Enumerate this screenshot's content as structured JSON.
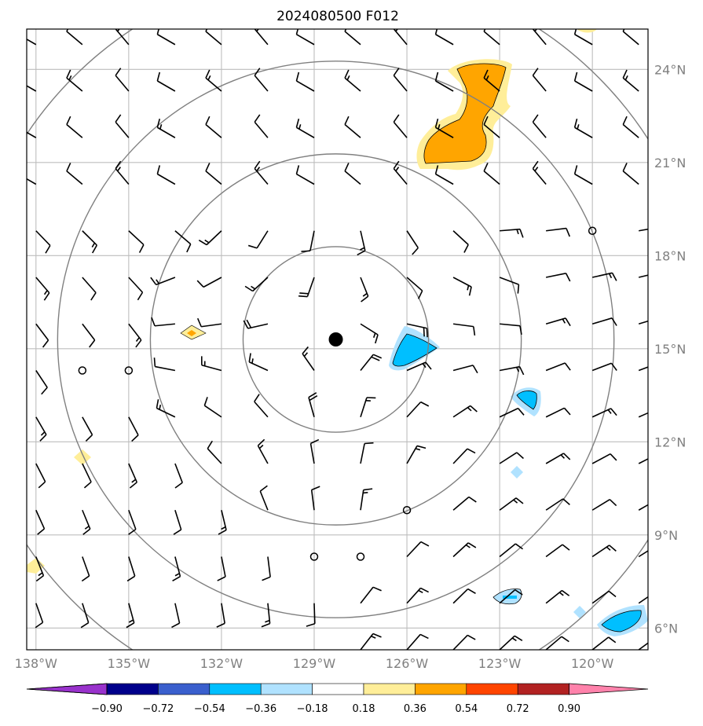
{
  "title": "2024080500 F012",
  "map": {
    "lon_ticks": [
      "138°W",
      "135°W",
      "132°W",
      "129°W",
      "126°W",
      "123°W",
      "120°W"
    ],
    "lat_ticks": [
      "24°N",
      "21°N",
      "18°N",
      "15°N",
      "12°N",
      "9°N",
      "6°N"
    ],
    "lon_range_deg": [
      -138.3,
      -118.2
    ],
    "lat_range_deg": [
      5.3,
      25.3
    ],
    "storm_center": {
      "lon": -128.3,
      "lat": 15.3
    },
    "range_rings_deg": [
      3,
      6,
      9,
      12
    ],
    "colors": {
      "land_ring": "#808080",
      "grid": "#bdbdbd",
      "positive_light": "#ffee99",
      "positive_mid": "#ffa500",
      "negative_light": "#b0e2ff",
      "negative_mid": "#00bfff"
    }
  },
  "colorbar": {
    "labels": [
      "−0.90",
      "−0.72",
      "−0.54",
      "−0.36",
      "−0.18",
      "0.18",
      "0.36",
      "0.54",
      "0.72",
      "0.90"
    ],
    "colors": [
      "#9932cc",
      "#00008b",
      "#3a5fcd",
      "#00bfff",
      "#b0e2ff",
      "#ffffff",
      "#ffee99",
      "#ffa500",
      "#ff4500",
      "#b22222",
      "#ff82ab"
    ]
  }
}
